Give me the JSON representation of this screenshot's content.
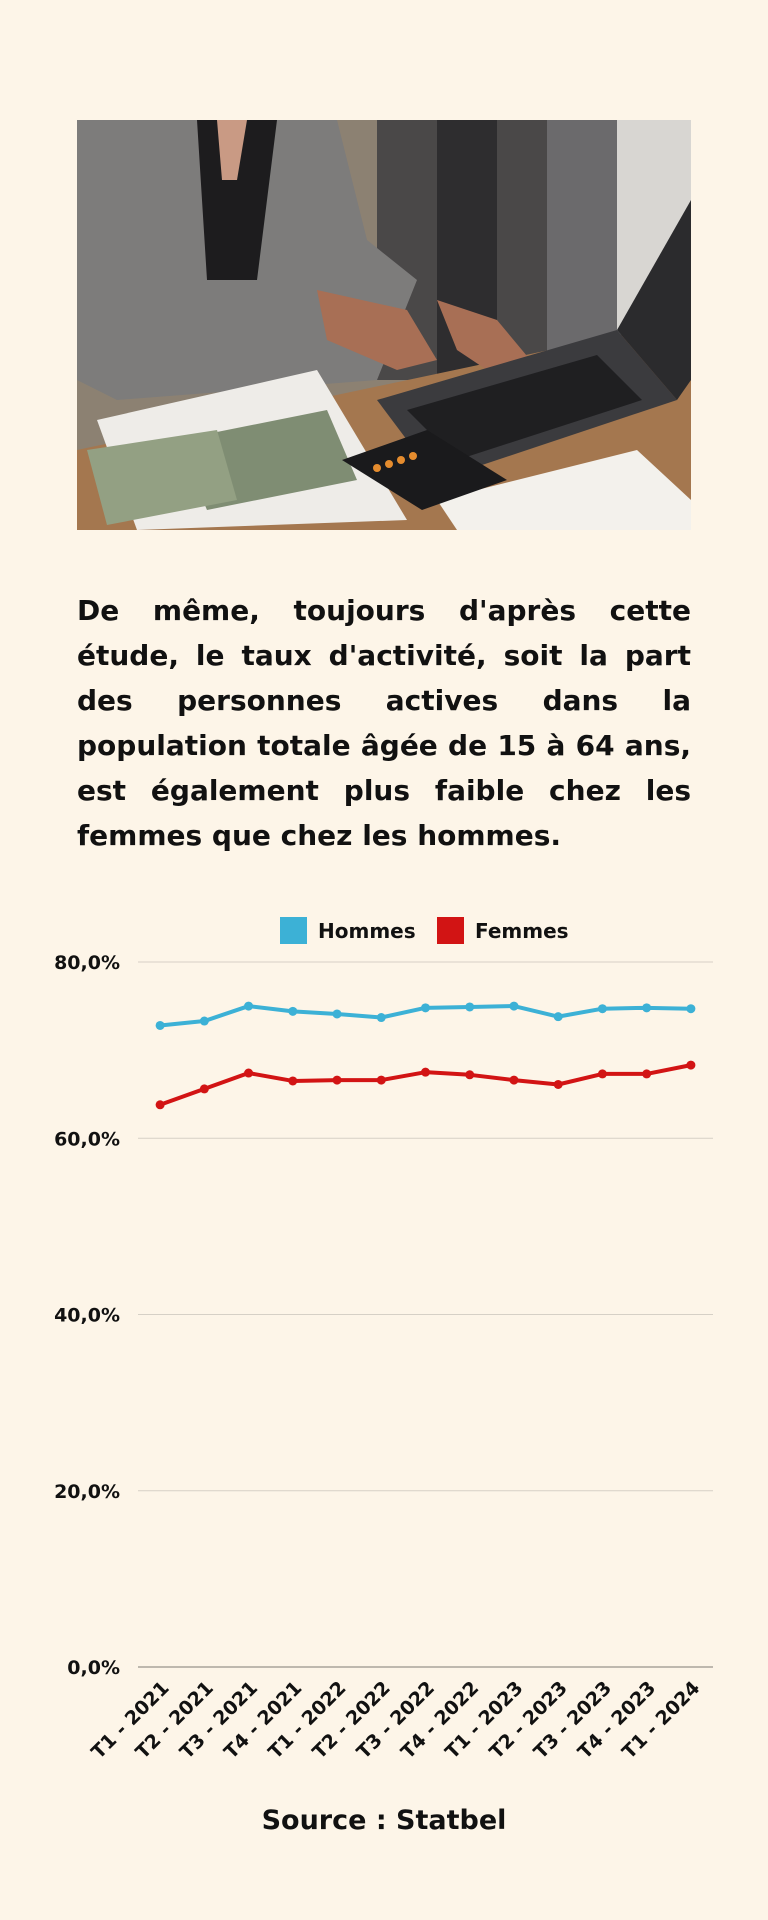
{
  "photo": {
    "description": "",
    "icon": "photo-woman-laptop-money-calculator"
  },
  "article": {
    "paragraph": "De même, toujours d'après cette étude, le taux d'activité, soit la part des personnes actives dans la population totale âgée de 15 à 64 ans, est également plus faible chez les femmes que chez les hommes."
  },
  "chart_data": {
    "type": "line",
    "categories": [
      "T1 - 2021",
      "T2 - 2021",
      "T3 - 2021",
      "T4 - 2021",
      "T1 - 2022",
      "T2 - 2022",
      "T3 - 2022",
      "T4 - 2022",
      "T1 - 2023",
      "T2 - 2023",
      "T3 - 2023",
      "T4 - 2023",
      "T1 - 2024"
    ],
    "series": [
      {
        "name": "Hommes",
        "color": "#3cb1d6",
        "values": [
          72.8,
          73.3,
          75.0,
          74.4,
          74.1,
          73.7,
          74.8,
          74.9,
          75.0,
          73.8,
          74.7,
          74.8,
          74.7
        ]
      },
      {
        "name": "Femmes",
        "color": "#d21414",
        "values": [
          63.8,
          65.6,
          67.4,
          66.5,
          66.6,
          66.6,
          67.5,
          67.2,
          66.6,
          66.1,
          67.3,
          67.3,
          68.3
        ]
      }
    ],
    "yticks": [
      "0,0%",
      "20,0%",
      "40,0%",
      "60,0%",
      "80,0%"
    ],
    "ylim": [
      0,
      80
    ],
    "legend_placement": "top-center",
    "grid": true,
    "title": "",
    "xlabel": "",
    "ylabel": ""
  },
  "footer": {
    "source": "Source : Statbel"
  }
}
